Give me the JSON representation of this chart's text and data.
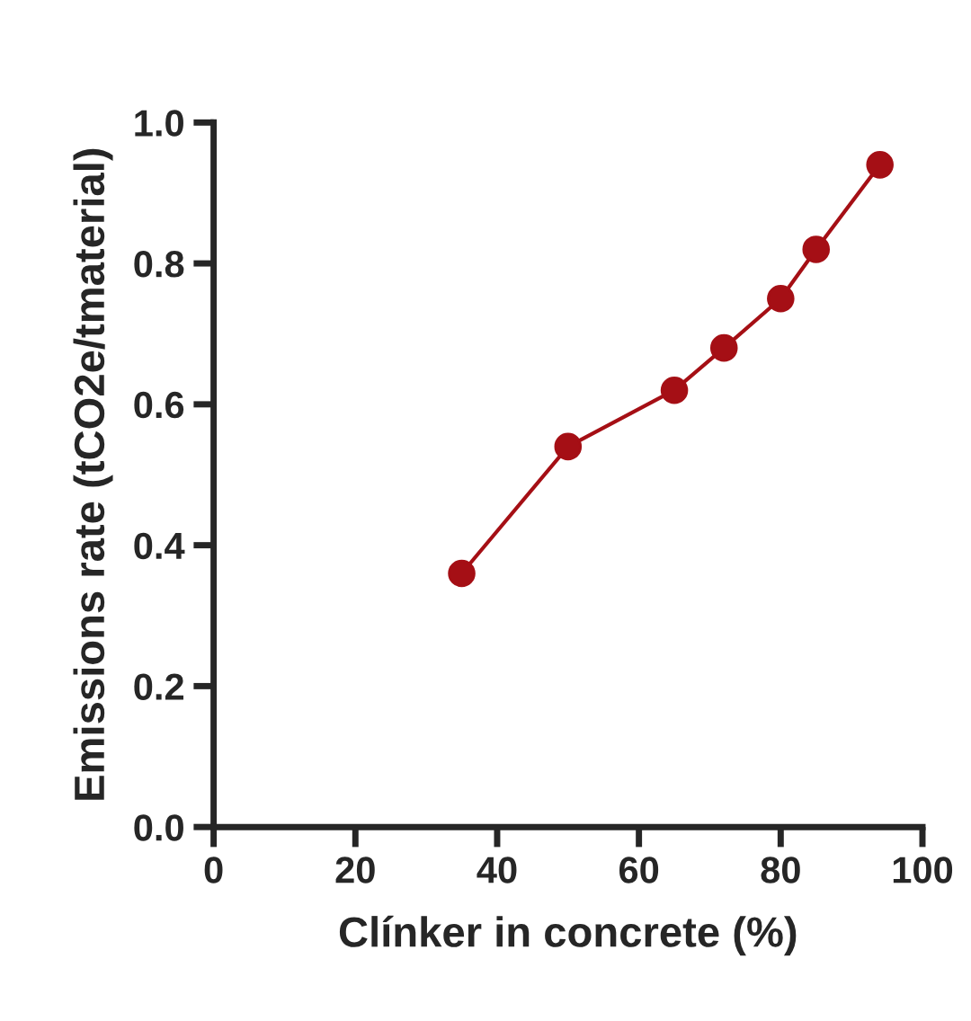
{
  "chart_data": {
    "type": "line",
    "xlabel": "Clínker in concrete (%)",
    "ylabel": "Emissions rate (tCO2e/tmaterial)",
    "x": [
      35,
      50,
      65,
      72,
      80,
      85,
      94
    ],
    "series": [
      {
        "color": "#a50f15",
        "values": [
          0.36,
          0.54,
          0.62,
          0.68,
          0.75,
          0.82,
          0.94
        ]
      }
    ],
    "xlim": [
      0,
      100
    ],
    "xticks": [
      0,
      20,
      40,
      60,
      80,
      100
    ],
    "ylim": [
      0,
      1.0
    ],
    "yticks": [
      {
        "value": 0,
        "label": "0.0"
      },
      {
        "value": 0.2,
        "label": "0.2"
      },
      {
        "value": 0.4,
        "label": "0.4"
      },
      {
        "value": 0.6,
        "label": "0.6"
      },
      {
        "value": 0.8,
        "label": "0.8"
      },
      {
        "value": 1.0,
        "label": "1.0"
      }
    ],
    "marker": "circle",
    "line_style": "solid",
    "grid": false,
    "legend": false
  }
}
